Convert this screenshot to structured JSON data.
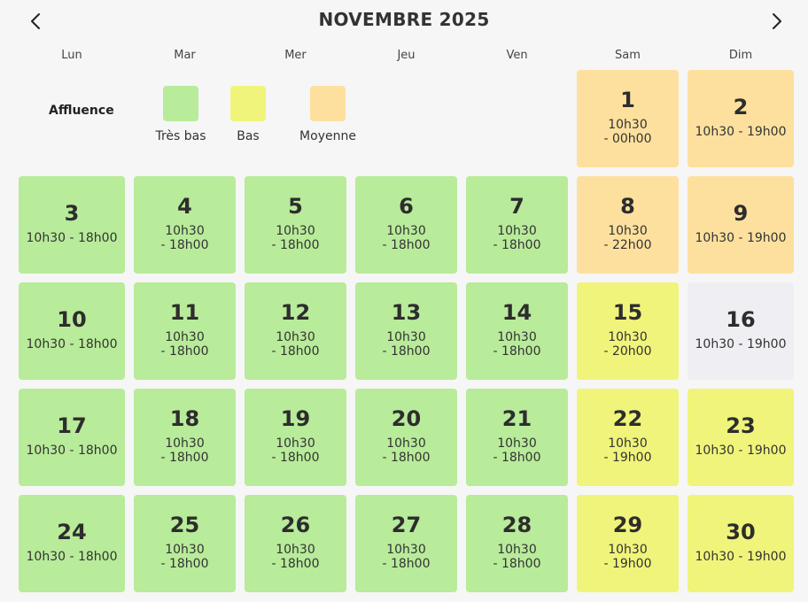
{
  "header": {
    "title": "NOVEMBRE 2025",
    "prev_icon": "chevron-left-icon",
    "next_icon": "chevron-right-icon"
  },
  "weekdays": [
    "Lun",
    "Mar",
    "Mer",
    "Jeu",
    "Ven",
    "Sam",
    "Dim"
  ],
  "legend": {
    "title": "Affluence",
    "items": [
      {
        "label": "Très bas",
        "color": "#b8eb9a"
      },
      {
        "label": "Bas",
        "color": "#f0f47a"
      },
      {
        "label": "Moyenne",
        "color": "#fde09e"
      }
    ]
  },
  "colors": {
    "tres_bas": "#b8eb9a",
    "bas": "#f0f47a",
    "moyenne": "#fde09e",
    "closed": "#efeef3"
  },
  "days": [
    {
      "day": "1",
      "weekday": 5,
      "level": "moyenne",
      "hours": [
        "10h30",
        "- 00h00"
      ]
    },
    {
      "day": "2",
      "weekday": 6,
      "level": "moyenne",
      "hours": [
        "10h30 - 19h00"
      ]
    },
    {
      "day": "3",
      "weekday": 0,
      "level": "tres_bas",
      "hours": [
        "10h30 - 18h00"
      ]
    },
    {
      "day": "4",
      "weekday": 1,
      "level": "tres_bas",
      "hours": [
        "10h30",
        "- 18h00"
      ]
    },
    {
      "day": "5",
      "weekday": 2,
      "level": "tres_bas",
      "hours": [
        "10h30",
        "- 18h00"
      ]
    },
    {
      "day": "6",
      "weekday": 3,
      "level": "tres_bas",
      "hours": [
        "10h30",
        "- 18h00"
      ]
    },
    {
      "day": "7",
      "weekday": 4,
      "level": "tres_bas",
      "hours": [
        "10h30",
        "- 18h00"
      ]
    },
    {
      "day": "8",
      "weekday": 5,
      "level": "moyenne",
      "hours": [
        "10h30",
        "- 22h00"
      ]
    },
    {
      "day": "9",
      "weekday": 6,
      "level": "moyenne",
      "hours": [
        "10h30 - 19h00"
      ]
    },
    {
      "day": "10",
      "weekday": 0,
      "level": "tres_bas",
      "hours": [
        "10h30 - 18h00"
      ]
    },
    {
      "day": "11",
      "weekday": 1,
      "level": "tres_bas",
      "hours": [
        "10h30",
        "- 18h00"
      ]
    },
    {
      "day": "12",
      "weekday": 2,
      "level": "tres_bas",
      "hours": [
        "10h30",
        "- 18h00"
      ]
    },
    {
      "day": "13",
      "weekday": 3,
      "level": "tres_bas",
      "hours": [
        "10h30",
        "- 18h00"
      ]
    },
    {
      "day": "14",
      "weekday": 4,
      "level": "tres_bas",
      "hours": [
        "10h30",
        "- 18h00"
      ]
    },
    {
      "day": "15",
      "weekday": 5,
      "level": "bas",
      "hours": [
        "10h30",
        "- 20h00"
      ]
    },
    {
      "day": "16",
      "weekday": 6,
      "level": "closed",
      "hours": [
        "10h30 - 19h00"
      ]
    },
    {
      "day": "17",
      "weekday": 0,
      "level": "tres_bas",
      "hours": [
        "10h30 - 18h00"
      ]
    },
    {
      "day": "18",
      "weekday": 1,
      "level": "tres_bas",
      "hours": [
        "10h30",
        "- 18h00"
      ]
    },
    {
      "day": "19",
      "weekday": 2,
      "level": "tres_bas",
      "hours": [
        "10h30",
        "- 18h00"
      ]
    },
    {
      "day": "20",
      "weekday": 3,
      "level": "tres_bas",
      "hours": [
        "10h30",
        "- 18h00"
      ]
    },
    {
      "day": "21",
      "weekday": 4,
      "level": "tres_bas",
      "hours": [
        "10h30",
        "- 18h00"
      ]
    },
    {
      "day": "22",
      "weekday": 5,
      "level": "bas",
      "hours": [
        "10h30",
        "- 19h00"
      ]
    },
    {
      "day": "23",
      "weekday": 6,
      "level": "bas",
      "hours": [
        "10h30 - 19h00"
      ]
    },
    {
      "day": "24",
      "weekday": 0,
      "level": "tres_bas",
      "hours": [
        "10h30 - 18h00"
      ]
    },
    {
      "day": "25",
      "weekday": 1,
      "level": "tres_bas",
      "hours": [
        "10h30",
        "- 18h00"
      ]
    },
    {
      "day": "26",
      "weekday": 2,
      "level": "tres_bas",
      "hours": [
        "10h30",
        "- 18h00"
      ]
    },
    {
      "day": "27",
      "weekday": 3,
      "level": "tres_bas",
      "hours": [
        "10h30",
        "- 18h00"
      ]
    },
    {
      "day": "28",
      "weekday": 4,
      "level": "tres_bas",
      "hours": [
        "10h30",
        "- 18h00"
      ]
    },
    {
      "day": "29",
      "weekday": 5,
      "level": "bas",
      "hours": [
        "10h30",
        "- 19h00"
      ]
    },
    {
      "day": "30",
      "weekday": 6,
      "level": "bas",
      "hours": [
        "10h30 - 19h00"
      ]
    }
  ]
}
